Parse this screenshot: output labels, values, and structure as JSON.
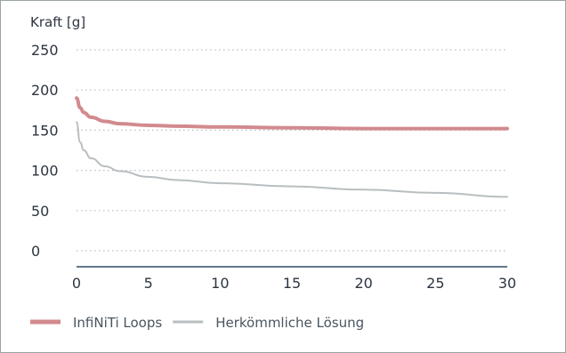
{
  "chart_data": {
    "type": "line",
    "ylabel": "Kraft [g]",
    "xlabel": "",
    "xlim": [
      0,
      30
    ],
    "ylim": [
      0,
      250
    ],
    "x_ticks": [
      "0",
      "5",
      "10",
      "15",
      "20",
      "25",
      "30"
    ],
    "y_ticks": [
      "0",
      "50",
      "100",
      "150",
      "200",
      "250"
    ],
    "grid": "vertical solid lines, horizontal dotted lines",
    "legend_position": "bottom-left",
    "series": [
      {
        "name": "InfiNiTi Loops",
        "color": "#d28a8e",
        "x": [
          0,
          0.25,
          0.5,
          1,
          2,
          3,
          5,
          7,
          10,
          15,
          20,
          25,
          30
        ],
        "y": [
          190,
          178,
          172,
          166,
          161,
          158,
          156,
          155,
          154,
          153,
          152,
          152,
          152
        ]
      },
      {
        "name": "Herkömmliche Lösung",
        "color": "#b9bec1",
        "x": [
          0,
          0.25,
          0.5,
          1,
          2,
          3,
          5,
          7,
          10,
          15,
          20,
          25,
          30
        ],
        "y": [
          160,
          135,
          125,
          115,
          105,
          99,
          92,
          88,
          84,
          80,
          76,
          72,
          67
        ]
      }
    ]
  }
}
